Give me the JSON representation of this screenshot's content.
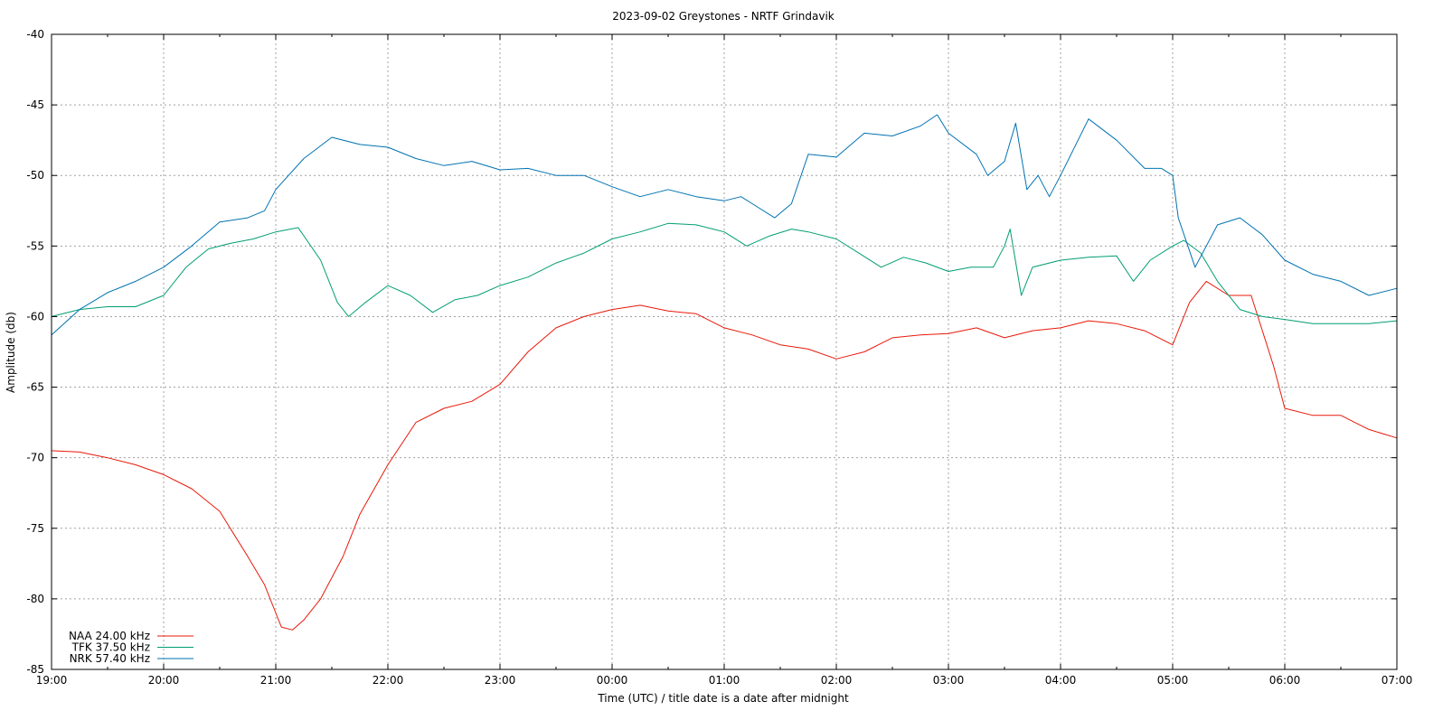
{
  "chart_data": {
    "type": "line",
    "title": "2023-09-02 Greystones - NRTF Grindavik",
    "xlabel": "Time (UTC) / title date is a date after midnight",
    "ylabel": "Amplitude (db)",
    "ylim": [
      -85,
      -40
    ],
    "xlim_hours": [
      19,
      31
    ],
    "x_ticks": [
      "19:00",
      "20:00",
      "21:00",
      "22:00",
      "23:00",
      "00:00",
      "01:00",
      "02:00",
      "03:00",
      "04:00",
      "05:00",
      "06:00",
      "07:00"
    ],
    "y_ticks": [
      "-40",
      "-45",
      "-50",
      "-55",
      "-60",
      "-65",
      "-70",
      "-75",
      "-80",
      "-85"
    ],
    "grid": true,
    "legend_position": "bottom-left",
    "series": [
      {
        "name": "NAA 24.00 kHz",
        "color": "#e8190a",
        "x": [
          19.0,
          19.25,
          19.5,
          19.75,
          20.0,
          20.25,
          20.5,
          20.75,
          20.9,
          21.0,
          21.05,
          21.15,
          21.25,
          21.4,
          21.6,
          21.75,
          22.0,
          22.25,
          22.5,
          22.75,
          23.0,
          23.25,
          23.5,
          23.75,
          24.0,
          24.25,
          24.5,
          24.75,
          25.0,
          25.25,
          25.5,
          25.75,
          26.0,
          26.25,
          26.5,
          26.75,
          27.0,
          27.25,
          27.5,
          27.75,
          28.0,
          28.25,
          28.5,
          28.75,
          29.0,
          29.15,
          29.3,
          29.5,
          29.7,
          29.9,
          30.0,
          30.25,
          30.5,
          30.75,
          31.0
        ],
        "y": [
          -69.5,
          -69.6,
          -70.0,
          -70.5,
          -71.2,
          -72.2,
          -73.8,
          -77.0,
          -79.0,
          -81.0,
          -82.0,
          -82.2,
          -81.5,
          -80.0,
          -77.0,
          -74.0,
          -70.5,
          -67.5,
          -66.5,
          -66.0,
          -64.8,
          -62.5,
          -60.8,
          -60.0,
          -59.5,
          -59.2,
          -59.6,
          -59.8,
          -60.8,
          -61.3,
          -62.0,
          -62.3,
          -63.0,
          -62.5,
          -61.5,
          -61.3,
          -61.2,
          -60.8,
          -61.5,
          -61.0,
          -60.8,
          -60.3,
          -60.5,
          -61.0,
          -62.0,
          -59.0,
          -57.5,
          -58.5,
          -58.5,
          -63.5,
          -66.5,
          -67.0,
          -67.0,
          -68.0,
          -68.6
        ]
      },
      {
        "name": "TFK 37.50 kHz",
        "color": "#009e73",
        "x": [
          19.0,
          19.25,
          19.5,
          19.75,
          20.0,
          20.2,
          20.4,
          20.6,
          20.8,
          21.0,
          21.2,
          21.4,
          21.55,
          21.65,
          21.8,
          22.0,
          22.2,
          22.4,
          22.6,
          22.8,
          23.0,
          23.25,
          23.5,
          23.75,
          24.0,
          24.25,
          24.5,
          24.75,
          25.0,
          25.2,
          25.4,
          25.6,
          25.75,
          26.0,
          26.2,
          26.4,
          26.6,
          26.8,
          27.0,
          27.2,
          27.4,
          27.5,
          27.55,
          27.65,
          27.75,
          28.0,
          28.25,
          28.5,
          28.65,
          28.8,
          29.0,
          29.1,
          29.25,
          29.4,
          29.6,
          29.8,
          30.0,
          30.25,
          30.5,
          30.75,
          31.0
        ],
        "y": [
          -60.0,
          -59.5,
          -59.3,
          -59.3,
          -58.5,
          -56.5,
          -55.2,
          -54.8,
          -54.5,
          -54.0,
          -53.7,
          -56.0,
          -59.0,
          -60.0,
          -59.0,
          -57.8,
          -58.5,
          -59.7,
          -58.8,
          -58.5,
          -57.8,
          -57.2,
          -56.2,
          -55.5,
          -54.5,
          -54.0,
          -53.4,
          -53.5,
          -54.0,
          -55.0,
          -54.3,
          -53.8,
          -54.0,
          -54.5,
          -55.5,
          -56.5,
          -55.8,
          -56.2,
          -56.8,
          -56.5,
          -56.5,
          -55.0,
          -53.8,
          -58.5,
          -56.5,
          -56.0,
          -55.8,
          -55.7,
          -57.5,
          -56.0,
          -55.0,
          -54.6,
          -55.5,
          -57.5,
          -59.5,
          -60.0,
          -60.2,
          -60.5,
          -60.5,
          -60.5,
          -60.3
        ]
      },
      {
        "name": "NRK 57.40 kHz",
        "color": "#0072b2",
        "x": [
          19.0,
          19.25,
          19.5,
          19.75,
          20.0,
          20.25,
          20.5,
          20.75,
          20.9,
          21.0,
          21.25,
          21.5,
          21.75,
          22.0,
          22.25,
          22.5,
          22.75,
          23.0,
          23.25,
          23.5,
          23.75,
          24.0,
          24.25,
          24.5,
          24.75,
          25.0,
          25.15,
          25.25,
          25.45,
          25.6,
          25.75,
          26.0,
          26.25,
          26.5,
          26.75,
          26.9,
          27.0,
          27.25,
          27.35,
          27.5,
          27.6,
          27.7,
          27.8,
          27.9,
          28.0,
          28.25,
          28.5,
          28.75,
          28.9,
          29.0,
          29.05,
          29.2,
          29.4,
          29.6,
          29.8,
          30.0,
          30.25,
          30.5,
          30.75,
          31.0
        ],
        "y": [
          -61.3,
          -59.5,
          -58.3,
          -57.5,
          -56.5,
          -55.0,
          -53.3,
          -53.0,
          -52.5,
          -51.0,
          -48.8,
          -47.3,
          -47.8,
          -48.0,
          -48.8,
          -49.3,
          -49.0,
          -49.6,
          -49.5,
          -50.0,
          -50.0,
          -50.8,
          -51.5,
          -51.0,
          -51.5,
          -51.8,
          -51.5,
          -52.0,
          -53.0,
          -52.0,
          -48.5,
          -48.7,
          -47.0,
          -47.2,
          -46.5,
          -45.7,
          -47.0,
          -48.5,
          -50.0,
          -49.0,
          -46.3,
          -51.0,
          -50.0,
          -51.5,
          -50.0,
          -46.0,
          -47.5,
          -49.5,
          -49.5,
          -50.0,
          -53.0,
          -56.5,
          -53.5,
          -53.0,
          -54.2,
          -56.0,
          -57.0,
          -57.5,
          -58.5,
          -58.0
        ]
      }
    ]
  }
}
